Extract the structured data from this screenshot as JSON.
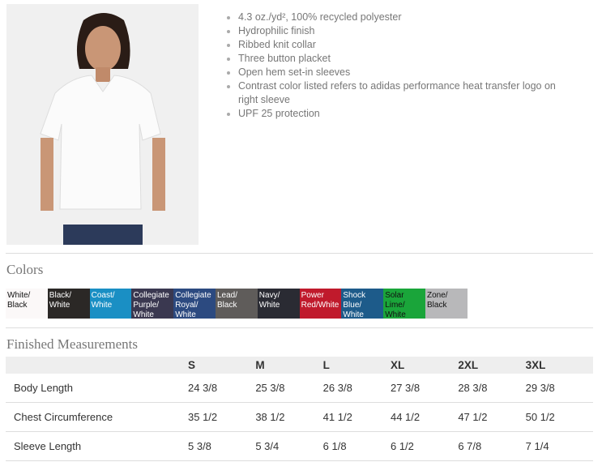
{
  "features": [
    "4.3 oz./yd², 100% recycled polyester",
    "Hydrophilic finish",
    "Ribbed knit collar",
    "Three button placket",
    "Open hem set-in sleeves",
    "Contrast color listed refers to adidas performance heat transfer logo on right sleeve",
    "UPF 25 protection"
  ],
  "colors_heading": "Colors",
  "colors": [
    {
      "name": "White/ Black",
      "bg": "#fbf8f8",
      "fg": "#111"
    },
    {
      "name": "Black/ White",
      "bg": "#2b2826",
      "fg": "#fff"
    },
    {
      "name": "Coast/ White",
      "bg": "#1a8fc4",
      "fg": "#fff"
    },
    {
      "name": "Collegiate Purple/ White",
      "bg": "#3a3850",
      "fg": "#fff"
    },
    {
      "name": "Collegiate Royal/ White",
      "bg": "#2c4a80",
      "fg": "#fff"
    },
    {
      "name": "Lead/ Black",
      "bg": "#5f5c5a",
      "fg": "#fff"
    },
    {
      "name": "Navy/ White",
      "bg": "#2a2b33",
      "fg": "#fff"
    },
    {
      "name": "Power Red/White",
      "bg": "#c01a2c",
      "fg": "#fff"
    },
    {
      "name": "Shock Blue/ White",
      "bg": "#1d5b8a",
      "fg": "#fff"
    },
    {
      "name": "Solar Lime/ White",
      "bg": "#1aa53a",
      "fg": "#111"
    },
    {
      "name": "Zone/ Black",
      "bg": "#b8b8ba",
      "fg": "#111"
    }
  ],
  "measurements_heading": "Finished Measurements",
  "sizes": [
    "S",
    "M",
    "L",
    "XL",
    "2XL",
    "3XL"
  ],
  "rows": [
    {
      "label": "Body Length",
      "values": [
        "24 3/8",
        "25 3/8",
        "26 3/8",
        "27 3/8",
        "28 3/8",
        "29 3/8"
      ]
    },
    {
      "label": "Chest Circumference",
      "values": [
        "35 1/2",
        "38 1/2",
        "41 1/2",
        "44 1/2",
        "47 1/2",
        "50 1/2"
      ]
    },
    {
      "label": "Sleeve Length",
      "values": [
        "5 3/8",
        "5 3/4",
        "6 1/8",
        "6 1/2",
        "6 7/8",
        "7 1/4"
      ]
    }
  ]
}
